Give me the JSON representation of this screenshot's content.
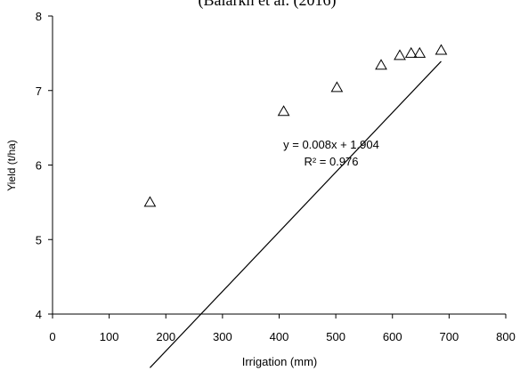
{
  "chart_data": {
    "type": "scatter",
    "title": "(Balarkh et al. (2016)",
    "xlabel": "Irrigation (mm)",
    "ylabel": "Yield (t/ha)",
    "xlim": [
      0,
      800
    ],
    "ylim": [
      4,
      8
    ],
    "x_ticks": [
      "0",
      "100",
      "200",
      "300",
      "400",
      "500",
      "600",
      "700",
      "800"
    ],
    "y_ticks": [
      "4",
      "5",
      "6",
      "7",
      "8"
    ],
    "grid": false,
    "legend": "none",
    "marker": "triangle",
    "series": [
      {
        "name": "",
        "points": [
          {
            "x": 172,
            "y": 5.5
          },
          {
            "x": 408,
            "y": 6.72
          },
          {
            "x": 502,
            "y": 7.04
          },
          {
            "x": 580,
            "y": 7.34
          },
          {
            "x": 613,
            "y": 7.47
          },
          {
            "x": 633,
            "y": 7.5
          },
          {
            "x": 648,
            "y": 7.5
          },
          {
            "x": 686,
            "y": 7.54
          }
        ]
      }
    ],
    "trendline": {
      "slope": 0.008,
      "intercept": 1.904,
      "x_start": 172,
      "x_end": 686,
      "equation": "y = 0.008x + 1.904",
      "r_squared": "R² = 0.976"
    },
    "colors": {
      "axis": "#000000",
      "marker": "#000000",
      "trendline": "#000000",
      "background": "#ffffff"
    }
  }
}
